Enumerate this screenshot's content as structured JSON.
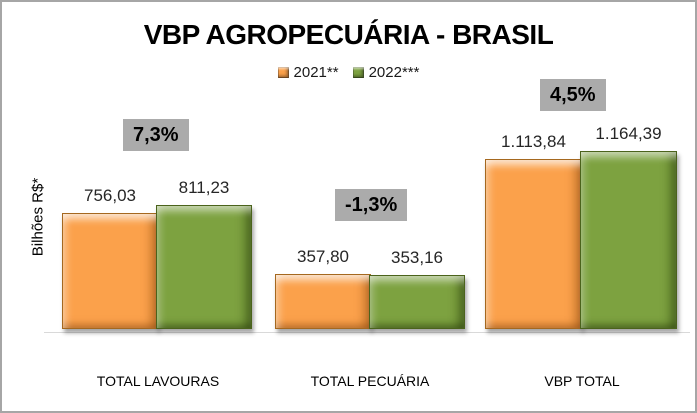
{
  "window": {
    "border_color": "#A6A6A6",
    "background": "#FFFFFF"
  },
  "chart_data": {
    "type": "bar",
    "title": "VBP AGROPECUÁRIA - BRASIL",
    "ylabel": "Bilhões R$*",
    "xlabel": "",
    "categories": [
      "TOTAL LAVOURAS",
      "TOTAL PECUÁRIA",
      "VBP TOTAL"
    ],
    "series": [
      {
        "name": "2021**",
        "color": "#FBA14B",
        "values": [
          756.03,
          357.8,
          1113.84
        ],
        "value_labels": [
          "756,03",
          "357,80",
          "1.113,84"
        ]
      },
      {
        "name": "2022***",
        "color": "#7DA240",
        "values": [
          811.23,
          353.16,
          1164.39
        ],
        "value_labels": [
          "811,23",
          "353,16",
          "1.164,39"
        ]
      }
    ],
    "annotations": [
      {
        "text": "7,3%",
        "category": "TOTAL LAVOURAS"
      },
      {
        "text": "-1,3%",
        "category": "TOTAL PECUÁRIA"
      },
      {
        "text": "4,5%",
        "category": "VBP TOTAL"
      }
    ],
    "annotation_bg": "#ABABAB",
    "axis_line_color": "#D9D9D9",
    "legend_position": "top-center",
    "grid": false,
    "ylim": [
      0,
      1300
    ]
  }
}
